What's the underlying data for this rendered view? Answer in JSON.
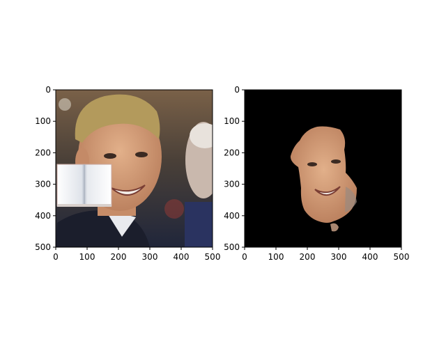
{
  "panels": [
    {
      "id": "left",
      "description_colors": {
        "bg_top": "#6f5a40",
        "bg_bottom": "#1c2233",
        "skin": "#d7a27c",
        "hair": "#b89e5c",
        "shirt": "#1c1f2e",
        "occluder": "#f3f4f6"
      },
      "xticks": [
        "0",
        "100",
        "200",
        "300",
        "400",
        "500"
      ],
      "yticks": [
        "0",
        "100",
        "200",
        "300",
        "400",
        "500"
      ]
    },
    {
      "id": "right",
      "description_colors": {
        "bg": "#000000",
        "skin": "#c99577"
      },
      "xticks": [
        "0",
        "100",
        "200",
        "300",
        "400",
        "500"
      ],
      "yticks": [
        "0",
        "100",
        "200",
        "300",
        "400",
        "500"
      ]
    }
  ],
  "axis_range": [
    0,
    500
  ]
}
